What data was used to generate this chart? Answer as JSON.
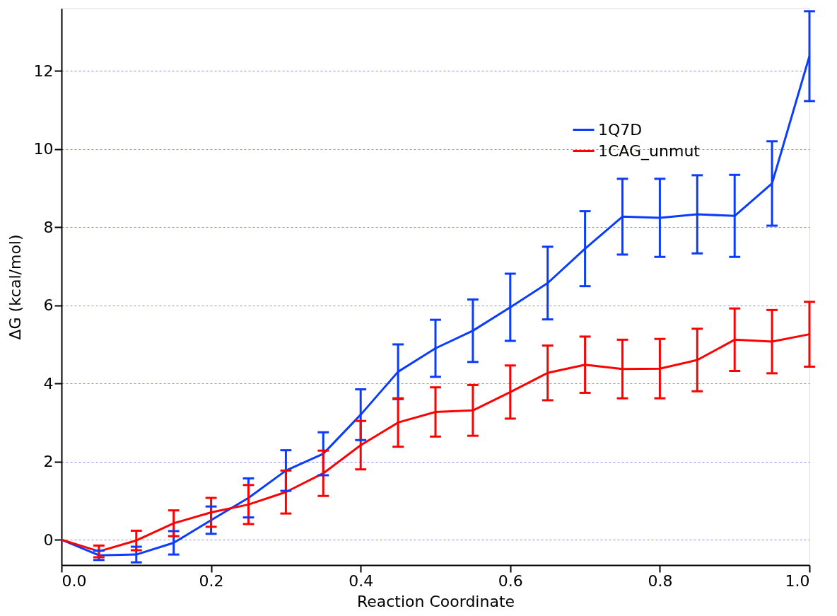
{
  "chart_data": {
    "type": "line",
    "xlabel": "Reaction Coordinate",
    "ylabel": "ΔG (kcal/mol)",
    "x": [
      0,
      0.05,
      0.1,
      0.15,
      0.2,
      0.25,
      0.3,
      0.35,
      0.4,
      0.45,
      0.5,
      0.55,
      0.6,
      0.65,
      0.7,
      0.75,
      0.8,
      0.85,
      0.9,
      0.95,
      1.0
    ],
    "series": [
      {
        "name": "1Q7D",
        "color": "#0a3cff",
        "values": [
          0,
          -0.4,
          -0.38,
          -0.08,
          0.5,
          1.07,
          1.77,
          2.2,
          3.2,
          4.3,
          4.9,
          5.35,
          5.95,
          6.57,
          7.45,
          8.27,
          8.24,
          8.33,
          8.29,
          9.12,
          12.38
        ],
        "errors": [
          null,
          0.12,
          0.2,
          0.3,
          0.35,
          0.5,
          0.52,
          0.55,
          0.65,
          0.7,
          0.73,
          0.8,
          0.86,
          0.93,
          0.96,
          0.97,
          1.0,
          1.0,
          1.05,
          1.08,
          1.15
        ]
      },
      {
        "name": "1CAG_unmut",
        "color": "#ff0000",
        "values": [
          0,
          -0.3,
          -0.02,
          0.42,
          0.7,
          0.9,
          1.22,
          1.7,
          2.42,
          3.0,
          3.27,
          3.31,
          3.78,
          4.27,
          4.48,
          4.37,
          4.38,
          4.6,
          5.12,
          5.07,
          5.26
        ],
        "errors": [
          null,
          0.15,
          0.25,
          0.33,
          0.37,
          0.5,
          0.55,
          0.58,
          0.62,
          0.62,
          0.63,
          0.65,
          0.68,
          0.7,
          0.72,
          0.75,
          0.76,
          0.8,
          0.8,
          0.81,
          0.83
        ]
      }
    ],
    "xlim": [
      0,
      1.0
    ],
    "xticks": [
      {
        "value": 0,
        "label": "0.0"
      },
      0.2,
      0.4,
      0.6,
      0.8,
      {
        "value": 1.0,
        "label": "1.0"
      }
    ],
    "ylim": [
      -0.65,
      13.6
    ],
    "yticks": [
      0,
      2,
      4,
      6,
      8,
      10,
      12
    ],
    "grid": "y",
    "legend": "top right",
    "marker": "none",
    "line_style": "solid"
  }
}
